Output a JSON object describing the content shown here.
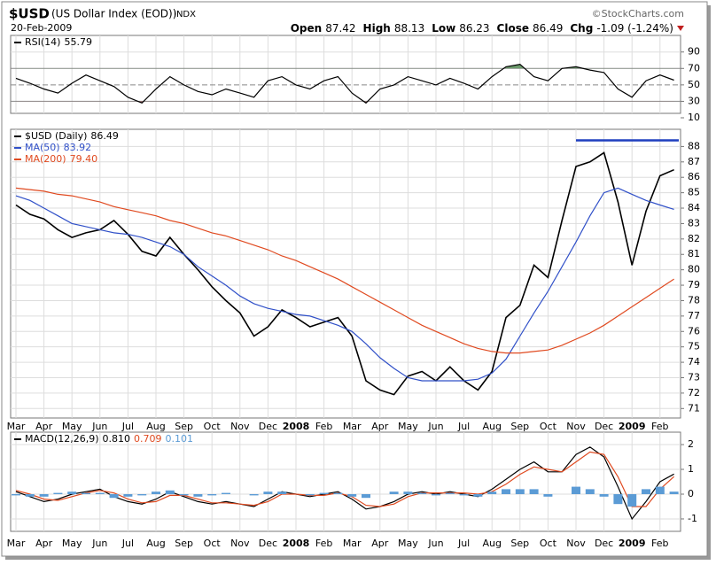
{
  "header": {
    "symbol": "$USD",
    "name": "(US Dollar Index (EOD))",
    "exchange": "INDX",
    "date": "20-Feb-2009",
    "source": "©StockCharts.com",
    "quote": [
      {
        "label": "Open",
        "value": "87.42"
      },
      {
        "label": "High",
        "value": "88.13"
      },
      {
        "label": "Low",
        "value": "86.23"
      },
      {
        "label": "Close",
        "value": "86.49"
      },
      {
        "label": "Chg",
        "value": "-1.09 (-1.24%)"
      }
    ]
  },
  "chart_data": [
    {
      "type": "line",
      "ylim": [
        10,
        108
      ],
      "yticks": [
        10,
        30,
        50,
        70,
        90
      ],
      "overbought": 70,
      "oversold": 30,
      "midline": 50,
      "overbought_color": "#6c9a6c",
      "oversold_color": "#a06060",
      "series": [
        {
          "name": "RSI(14)",
          "color": "#000000",
          "values": [
            58,
            52,
            45,
            40,
            52,
            62,
            55,
            48,
            35,
            28,
            45,
            60,
            50,
            42,
            38,
            45,
            40,
            35,
            55,
            60,
            50,
            45,
            55,
            60,
            40,
            28,
            45,
            50,
            60,
            55,
            50,
            58,
            52,
            45,
            60,
            72,
            75,
            60,
            55,
            70,
            72,
            68,
            65,
            45,
            35,
            55,
            62,
            55.79
          ]
        }
      ]
    },
    {
      "type": "line",
      "ylim": [
        70.5,
        89
      ],
      "yticks": [
        71,
        72,
        73,
        74,
        75,
        76,
        77,
        78,
        79,
        80,
        81,
        82,
        83,
        84,
        85,
        86,
        87,
        88
      ],
      "grid": true,
      "hline": 88.4,
      "hline_color": "#1f3fbf",
      "categories": [
        "Mar",
        null,
        "Apr",
        null,
        "May",
        null,
        "Jun",
        null,
        "Jul",
        null,
        "Aug",
        null,
        "Sep",
        null,
        "Oct",
        null,
        "Nov",
        null,
        "Dec",
        null,
        "2008",
        null,
        "Feb",
        null,
        "Mar",
        null,
        "Apr",
        null,
        "May",
        null,
        "Jun",
        null,
        "Jul",
        null,
        "Aug",
        null,
        "Sep",
        null,
        "Oct",
        null,
        "Nov",
        null,
        "Dec",
        null,
        "2009",
        null,
        "Feb",
        null
      ],
      "series": [
        {
          "name": "$USD (Daily)",
          "color": "#000000",
          "values": [
            84.2,
            83.6,
            83.3,
            82.6,
            82.1,
            82.4,
            82.6,
            83.2,
            82.3,
            81.2,
            80.9,
            82.1,
            81.0,
            80.0,
            78.9,
            78.0,
            77.2,
            75.7,
            76.3,
            77.4,
            76.9,
            76.3,
            76.6,
            76.9,
            75.7,
            72.8,
            72.2,
            71.9,
            73.1,
            73.4,
            72.8,
            73.7,
            72.8,
            72.2,
            73.4,
            76.9,
            77.7,
            80.3,
            79.5,
            83.2,
            86.7,
            87.0,
            87.6,
            84.4,
            80.3,
            83.8,
            86.1,
            86.49
          ]
        },
        {
          "name": "MA(50)",
          "color": "#3050c8",
          "values": [
            84.8,
            84.5,
            84.0,
            83.5,
            83.0,
            82.8,
            82.6,
            82.4,
            82.3,
            82.1,
            81.8,
            81.5,
            81.0,
            80.2,
            79.6,
            79.0,
            78.3,
            77.8,
            77.5,
            77.3,
            77.1,
            77.0,
            76.7,
            76.4,
            76.0,
            75.2,
            74.3,
            73.6,
            73.0,
            72.8,
            72.8,
            72.8,
            72.8,
            72.9,
            73.3,
            74.2,
            75.7,
            77.2,
            78.6,
            80.2,
            81.8,
            83.5,
            85.0,
            85.3,
            84.9,
            84.5,
            84.2,
            83.92
          ]
        },
        {
          "name": "MA(200)",
          "color": "#e04a20",
          "values": [
            85.3,
            85.2,
            85.1,
            84.9,
            84.8,
            84.6,
            84.4,
            84.1,
            83.9,
            83.7,
            83.5,
            83.2,
            83.0,
            82.7,
            82.4,
            82.2,
            81.9,
            81.6,
            81.3,
            80.9,
            80.6,
            80.2,
            79.8,
            79.4,
            78.9,
            78.4,
            77.9,
            77.4,
            76.9,
            76.4,
            76.0,
            75.6,
            75.2,
            74.9,
            74.7,
            74.6,
            74.6,
            74.7,
            74.8,
            75.1,
            75.5,
            75.9,
            76.4,
            77.0,
            77.6,
            78.2,
            78.8,
            79.4
          ],
          "value_labels": [
            null,
            null,
            null,
            null,
            null,
            null,
            null,
            null,
            null,
            null,
            null,
            null,
            null,
            null,
            null,
            null,
            null,
            null,
            null,
            null,
            null,
            null,
            null,
            null,
            null,
            null,
            null,
            null,
            null,
            null,
            null,
            null,
            null,
            null,
            null,
            null,
            null,
            null,
            null,
            null,
            null,
            null,
            null,
            null,
            null,
            null,
            null,
            "79.40"
          ]
        }
      ]
    },
    {
      "type": "line",
      "ylim": [
        -1.43,
        2.43
      ],
      "yticks": [
        -1,
        0,
        1,
        2
      ],
      "grid": true,
      "series": [
        {
          "name": "MACD(12,26,9)",
          "color": "#000000",
          "values": [
            0.1,
            -0.1,
            -0.3,
            -0.2,
            0.0,
            0.1,
            0.2,
            -0.1,
            -0.3,
            -0.4,
            -0.2,
            0.1,
            -0.1,
            -0.3,
            -0.4,
            -0.3,
            -0.4,
            -0.5,
            -0.2,
            0.1,
            0.0,
            -0.1,
            0.0,
            0.1,
            -0.2,
            -0.6,
            -0.5,
            -0.3,
            0.0,
            0.1,
            0.0,
            0.1,
            0.0,
            -0.1,
            0.2,
            0.6,
            1.0,
            1.3,
            0.9,
            0.9,
            1.6,
            1.9,
            1.5,
            0.3,
            -1.0,
            -0.3,
            0.5,
            0.81
          ],
          "value_labels": [
            null,
            null,
            null,
            null,
            null,
            null,
            null,
            null,
            null,
            null,
            null,
            null,
            null,
            null,
            null,
            null,
            null,
            null,
            null,
            null,
            null,
            null,
            null,
            null,
            null,
            null,
            null,
            null,
            null,
            null,
            null,
            null,
            null,
            null,
            null,
            null,
            null,
            null,
            null,
            null,
            null,
            null,
            null,
            null,
            null,
            null,
            null,
            "0.810"
          ]
        },
        {
          "color": "#e04a20",
          "values": [
            0.15,
            0.0,
            -0.2,
            -0.25,
            -0.1,
            0.05,
            0.15,
            0.05,
            -0.2,
            -0.35,
            -0.3,
            -0.05,
            -0.05,
            -0.2,
            -0.35,
            -0.35,
            -0.4,
            -0.45,
            -0.3,
            0.0,
            0.0,
            -0.05,
            -0.05,
            0.05,
            -0.1,
            -0.45,
            -0.5,
            -0.4,
            -0.1,
            0.05,
            0.05,
            0.05,
            0.05,
            0.0,
            0.1,
            0.4,
            0.8,
            1.1,
            1.0,
            0.9,
            1.3,
            1.7,
            1.6,
            0.7,
            -0.5,
            -0.5,
            0.2,
            0.709
          ]
        },
        {
          "color": "#5b9bd5",
          "style": "bar",
          "values": [
            -0.05,
            -0.1,
            -0.1,
            0.05,
            0.1,
            0.05,
            0.05,
            -0.15,
            -0.1,
            -0.05,
            0.1,
            0.15,
            -0.05,
            -0.1,
            -0.05,
            0.05,
            0.0,
            -0.05,
            0.1,
            0.1,
            0.0,
            -0.05,
            0.05,
            0.05,
            -0.1,
            -0.15,
            0.0,
            0.1,
            0.1,
            0.05,
            -0.05,
            0.05,
            -0.05,
            -0.1,
            0.1,
            0.2,
            0.2,
            0.2,
            -0.1,
            0.0,
            0.3,
            0.2,
            -0.1,
            -0.4,
            -0.5,
            0.2,
            0.3,
            0.101
          ]
        }
      ]
    }
  ]
}
